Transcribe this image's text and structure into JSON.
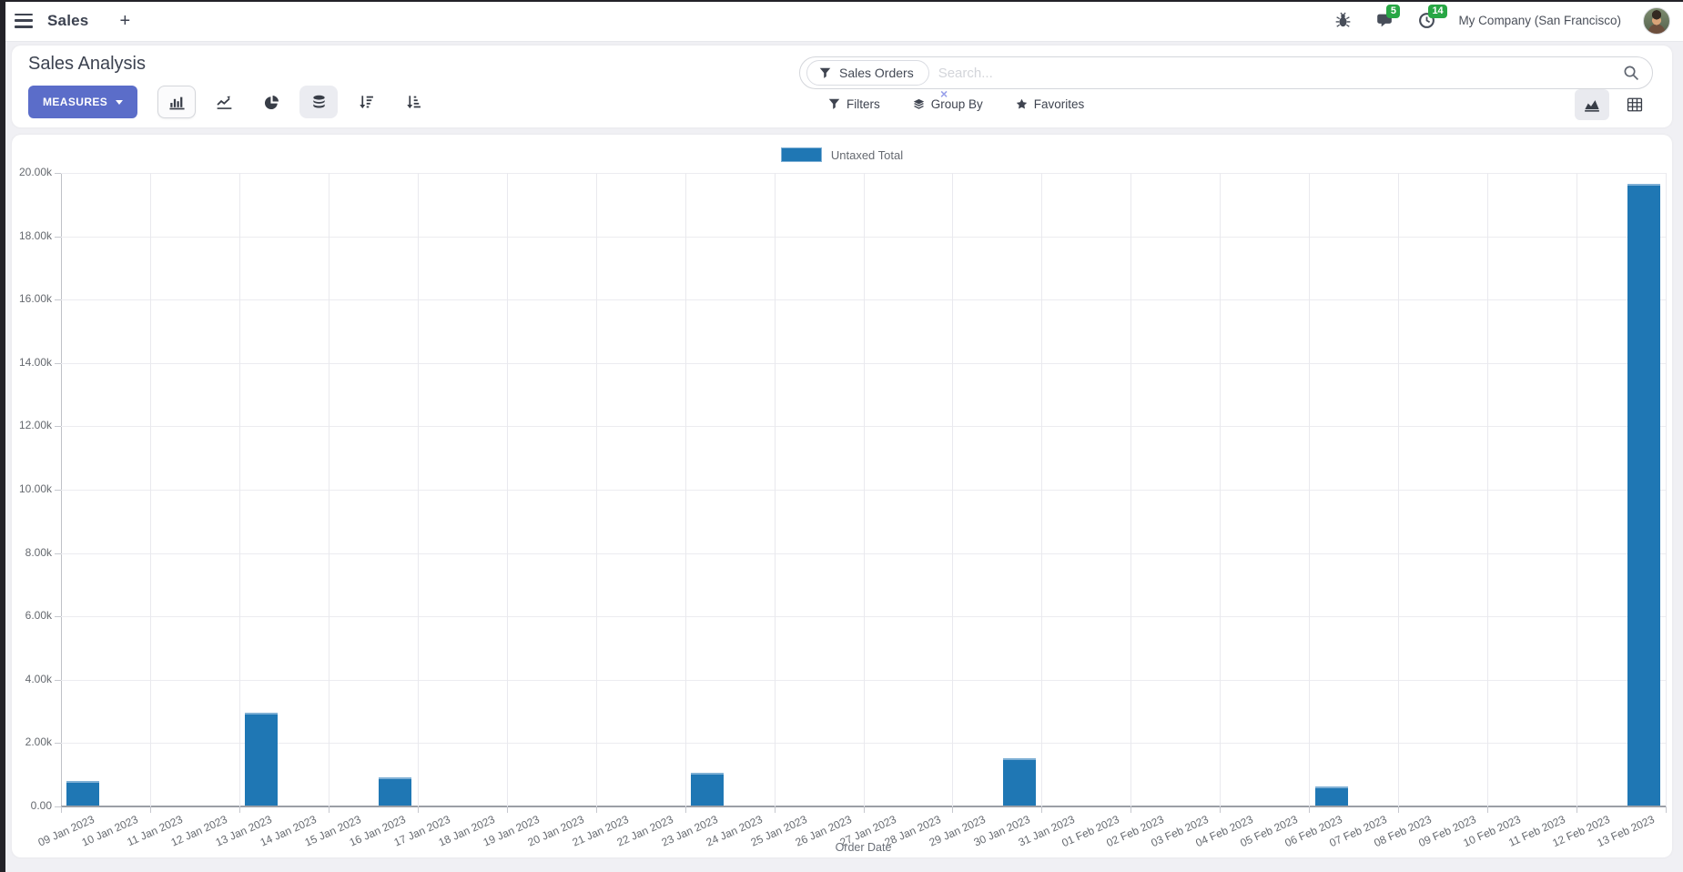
{
  "navbar": {
    "app_name": "Sales",
    "new_tab_label": "+",
    "messages_count": "5",
    "activities_count": "14",
    "company": "My Company (San Francisco)"
  },
  "control_panel": {
    "title": "Sales Analysis",
    "measures_label": "MEASURES",
    "search": {
      "facet": "Sales Orders",
      "remove_label": "×",
      "placeholder": "Search..."
    },
    "buttons": {
      "filters": "Filters",
      "group_by": "Group By",
      "favorites": "Favorites"
    }
  },
  "ui_colors": {
    "accent": "#5b6dc9",
    "badge_green": "#28a745",
    "bar_blue": "#1f77b4"
  },
  "chart_data": {
    "type": "bar",
    "title": "",
    "legend": "Untaxed Total",
    "legend_position": "top",
    "xlabel": "Order Date",
    "ylabel": "",
    "ylim": [
      0,
      20000
    ],
    "grid": true,
    "ytick_labels": [
      "0.00",
      "2.00k",
      "4.00k",
      "6.00k",
      "8.00k",
      "10.00k",
      "12.00k",
      "14.00k",
      "16.00k",
      "18.00k",
      "20.00k"
    ],
    "categories": [
      "09 Jan 2023",
      "10 Jan 2023",
      "11 Jan 2023",
      "12 Jan 2023",
      "13 Jan 2023",
      "14 Jan 2023",
      "15 Jan 2023",
      "16 Jan 2023",
      "17 Jan 2023",
      "18 Jan 2023",
      "19 Jan 2023",
      "20 Jan 2023",
      "21 Jan 2023",
      "22 Jan 2023",
      "23 Jan 2023",
      "24 Jan 2023",
      "25 Jan 2023",
      "26 Jan 2023",
      "27 Jan 2023",
      "28 Jan 2023",
      "29 Jan 2023",
      "30 Jan 2023",
      "31 Jan 2023",
      "01 Feb 2023",
      "02 Feb 2023",
      "03 Feb 2023",
      "04 Feb 2023",
      "05 Feb 2023",
      "06 Feb 2023",
      "07 Feb 2023",
      "08 Feb 2023",
      "09 Feb 2023",
      "10 Feb 2023",
      "11 Feb 2023",
      "12 Feb 2023",
      "13 Feb 2023"
    ],
    "values": [
      780,
      0,
      0,
      0,
      2930,
      0,
      0,
      890,
      0,
      0,
      0,
      0,
      0,
      0,
      1030,
      0,
      0,
      0,
      0,
      0,
      0,
      1490,
      0,
      0,
      0,
      0,
      0,
      0,
      600,
      0,
      0,
      0,
      0,
      0,
      0,
      19630
    ],
    "color": "#1f77b4",
    "color_light": "#7fb0d5"
  }
}
